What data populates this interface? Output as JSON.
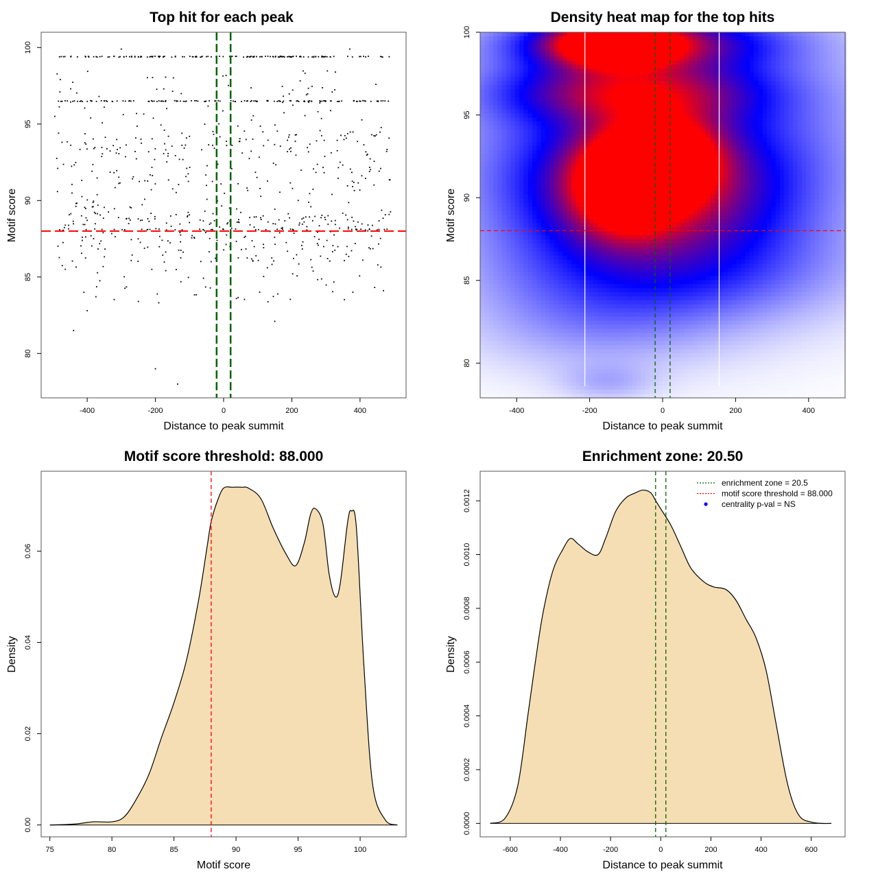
{
  "colors": {
    "scatter_point": "#000000",
    "threshold_line": "#ff0000",
    "zone_line": "#006400",
    "heat_low": "#ffffff",
    "heat_mid": "#0000ff",
    "heat_high": "#ff0000",
    "density_fill": "#f5deb3",
    "legend_dot": "#0000ff"
  },
  "chart_data": [
    {
      "type": "scatter",
      "title": "Top hit for each peak",
      "xlabel": "Distance to peak summit",
      "ylabel": "Motif score",
      "xlim": [
        -535,
        535
      ],
      "ylim": [
        77.1,
        101
      ],
      "xticks": [
        "-400",
        "-200",
        "0",
        "200",
        "400"
      ],
      "yticks": [
        "80",
        "85",
        "90",
        "95",
        "100"
      ],
      "threshold_y": 88.0,
      "zone_x": [
        -20.5,
        20.5
      ],
      "point_bands": [
        {
          "y": 99.4,
          "n": 150
        },
        {
          "y": 96.5,
          "n": 130
        },
        {
          "y": 88.1,
          "n": 40
        }
      ],
      "outlier_points": [
        [
          -440,
          81.5
        ],
        [
          -200,
          79.0
        ],
        [
          -135,
          78.0
        ],
        [
          150,
          82.1
        ],
        [
          -400,
          82.8
        ],
        [
          -250,
          83.4
        ],
        [
          -495,
          95.5
        ],
        [
          -480,
          97.1
        ],
        [
          -300,
          99.9
        ],
        [
          370,
          99.9
        ]
      ]
    },
    {
      "type": "heatmap",
      "title": "Density heat map for the top hits",
      "xlabel": "Distance to peak summit",
      "ylabel": "Motif score",
      "xlim": [
        -500,
        500
      ],
      "ylim": [
        77.9,
        100
      ],
      "xticks": [
        "-400",
        "-200",
        "0",
        "200",
        "400"
      ],
      "yticks": [
        "80",
        "85",
        "90",
        "95",
        "100"
      ],
      "threshold_y": 88.0,
      "zone_x": [
        -20.5,
        20.5
      ],
      "white_lines_x": [
        -213,
        155
      ],
      "density_blobs": [
        {
          "x": -130,
          "y": 99.3,
          "sx": 110,
          "sy": 0.9,
          "w": 1.0
        },
        {
          "x": -60,
          "y": 99.4,
          "sx": 240,
          "sy": 1.1,
          "w": 0.55
        },
        {
          "x": -90,
          "y": 96.4,
          "sx": 230,
          "sy": 1.3,
          "w": 0.55
        },
        {
          "x": -100,
          "y": 91.0,
          "sx": 95,
          "sy": 2.0,
          "w": 0.85
        },
        {
          "x": 30,
          "y": 92.5,
          "sx": 90,
          "sy": 1.6,
          "w": 0.6
        },
        {
          "x": -30,
          "y": 90.5,
          "sx": 240,
          "sy": 2.6,
          "w": 0.55
        },
        {
          "x": 0,
          "y": 93.5,
          "sx": 380,
          "sy": 6.0,
          "w": 0.45
        },
        {
          "x": 0,
          "y": 85.5,
          "sx": 330,
          "sy": 2.3,
          "w": 0.28
        },
        {
          "x": -200,
          "y": 82.0,
          "sx": 240,
          "sy": 2.0,
          "w": 0.12
        },
        {
          "x": -150,
          "y": 78.8,
          "sx": 90,
          "sy": 0.8,
          "w": 0.12
        }
      ]
    },
    {
      "type": "area",
      "title": "Motif score threshold: 88.000",
      "xlabel": "Motif score",
      "ylabel": "Density",
      "xlim": [
        74.3,
        103.7
      ],
      "ylim": [
        -0.0026,
        0.0775
      ],
      "xticks": [
        "75",
        "80",
        "85",
        "90",
        "95",
        "100"
      ],
      "yticks": [
        "0.00",
        "0.02",
        "0.04",
        "0.06"
      ],
      "threshold_x": 88.0,
      "x": [
        75,
        77,
        78.5,
        80,
        81,
        82,
        83,
        84,
        85,
        86,
        87,
        87.7,
        88,
        88.5,
        89,
        89.7,
        90.5,
        91,
        92,
        93,
        94,
        94.8,
        95.5,
        96,
        96.4,
        97,
        97.5,
        98,
        98.4,
        99,
        99.3,
        99.7,
        100.3,
        101,
        102,
        103
      ],
      "values": [
        0.0,
        0.0002,
        0.0007,
        0.0007,
        0.0018,
        0.0058,
        0.0112,
        0.0192,
        0.0268,
        0.036,
        0.0495,
        0.0615,
        0.0665,
        0.071,
        0.0738,
        0.074,
        0.074,
        0.0738,
        0.0715,
        0.065,
        0.0595,
        0.0568,
        0.0618,
        0.068,
        0.0693,
        0.066,
        0.055,
        0.05,
        0.053,
        0.0665,
        0.0688,
        0.065,
        0.035,
        0.009,
        0.0012,
        0.0
      ]
    },
    {
      "type": "area",
      "title": "Enrichment zone: 20.50",
      "xlabel": "Distance to peak summit",
      "ylabel": "Density",
      "xlim": [
        -720,
        735
      ],
      "ylim": [
        -5e-05,
        0.00131
      ],
      "xticks": [
        "-600",
        "-400",
        "-200",
        "0",
        "200",
        "400",
        "600"
      ],
      "yticks": [
        "0.0000",
        "0.0002",
        "0.0004",
        "0.0006",
        "0.0008",
        "0.0010",
        "0.0012"
      ],
      "zone_x": [
        -20.5,
        20.5
      ],
      "x": [
        -680,
        -620,
        -570,
        -530,
        -500,
        -470,
        -430,
        -390,
        -360,
        -330,
        -290,
        -250,
        -220,
        -180,
        -140,
        -100,
        -70,
        -40,
        -20,
        0,
        40,
        80,
        120,
        170,
        210,
        260,
        300,
        340,
        380,
        420,
        460,
        500,
        530,
        560,
        600,
        640,
        680
      ],
      "values": [
        0.0,
        2e-05,
        0.00014,
        0.0004,
        0.0006,
        0.00078,
        0.00094,
        0.00102,
        0.00106,
        0.00104,
        0.00101,
        0.001,
        0.00106,
        0.00116,
        0.00121,
        0.00123,
        0.00124,
        0.00123,
        0.0012,
        0.00117,
        0.00111,
        0.00103,
        0.00095,
        0.0009,
        0.00088,
        0.00087,
        0.00083,
        0.00076,
        0.00069,
        0.00057,
        0.00037,
        0.00017,
        7e-05,
        2e-05,
        5e-06,
        0.0,
        0.0
      ],
      "legend": [
        {
          "label": "enrichment zone = 20.5",
          "style": "dotted-line",
          "color": "#006400"
        },
        {
          "label": "motif score threshold = 88.000",
          "style": "dotted-line",
          "color": "#ff0000"
        },
        {
          "label": "centrality p-val = NS",
          "style": "dot",
          "color": "#0000ff"
        }
      ],
      "legend_position": "top-right"
    }
  ]
}
